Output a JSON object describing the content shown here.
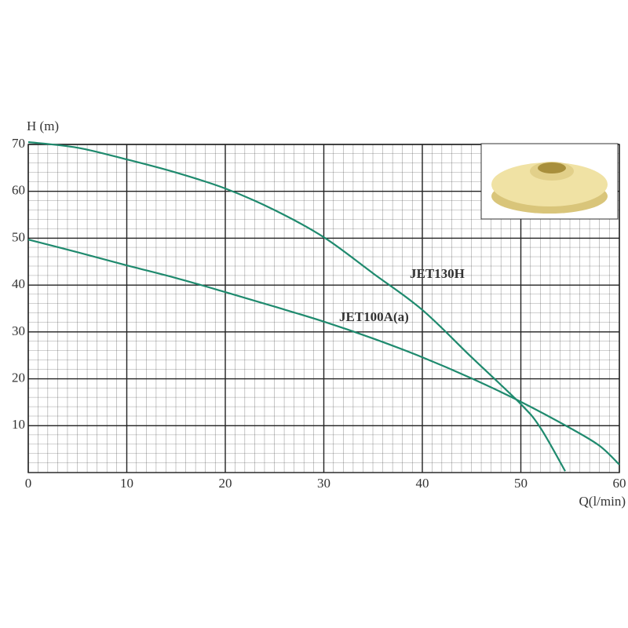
{
  "chart_data": {
    "type": "line",
    "y_label": "H (m)",
    "x_label": "Q(l/min)",
    "xlim": [
      0,
      60
    ],
    "ylim": [
      0,
      70
    ],
    "xticks": [
      0,
      10,
      20,
      30,
      40,
      50,
      60
    ],
    "yticks": [
      10,
      20,
      30,
      40,
      50,
      60,
      70
    ],
    "grid": true,
    "series": [
      {
        "name": "JET130H",
        "color": "#1f8a6e",
        "x": [
          0,
          5,
          10,
          15,
          20,
          25,
          30,
          35,
          40,
          45,
          50,
          52,
          54.5
        ],
        "values": [
          70.5,
          69.3,
          66.8,
          64,
          60.6,
          56,
          50.2,
          42.5,
          34.7,
          24.6,
          14.6,
          9.5,
          0.3
        ]
      },
      {
        "name": "JET100A(a)",
        "color": "#1f8a6e",
        "x": [
          0,
          5,
          10,
          15,
          20,
          25,
          30,
          35,
          40,
          45,
          50,
          55,
          58,
          60
        ],
        "values": [
          49.7,
          47,
          44.2,
          41.5,
          38.5,
          35.4,
          32.2,
          28.6,
          24.6,
          20.1,
          15.1,
          9.5,
          5.7,
          1.7
        ]
      }
    ]
  }
}
